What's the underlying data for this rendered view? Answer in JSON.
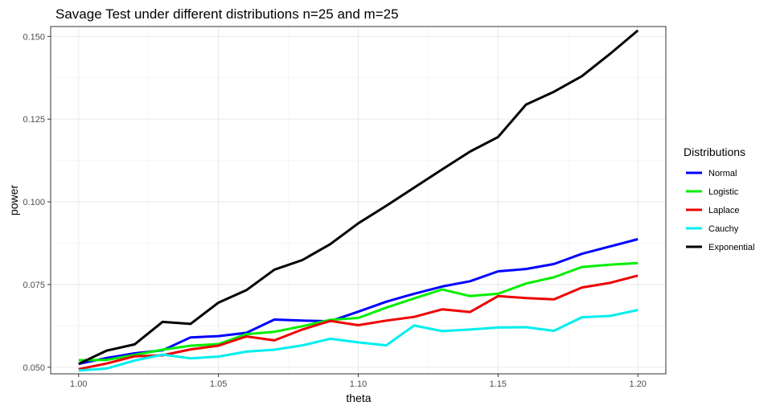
{
  "chart_data": {
    "type": "line",
    "title": "Savage Test under different distributions n=25 and m=25",
    "xlabel": "theta",
    "ylabel": "power",
    "xlim": [
      0.99,
      1.21
    ],
    "ylim": [
      0.048,
      0.153
    ],
    "x_ticks": [
      1.0,
      1.05,
      1.1,
      1.15,
      1.2
    ],
    "x_tick_labels": [
      "1.00",
      "1.05",
      "1.10",
      "1.15",
      "1.20"
    ],
    "y_ticks": [
      0.05,
      0.075,
      0.1,
      0.125,
      0.15
    ],
    "y_tick_labels": [
      "0.050",
      "0.075",
      "0.100",
      "0.125",
      "0.150"
    ],
    "grid": true,
    "legend_title": "Distributions",
    "legend_position": "right",
    "x": [
      1.0,
      1.01,
      1.02,
      1.03,
      1.04,
      1.05,
      1.06,
      1.07,
      1.08,
      1.09,
      1.1,
      1.11,
      1.12,
      1.13,
      1.14,
      1.15,
      1.16,
      1.17,
      1.18,
      1.19,
      1.2
    ],
    "series": [
      {
        "name": "Normal",
        "color": "#0000FF",
        "values": [
          0.051,
          0.0528,
          0.0542,
          0.0551,
          0.059,
          0.0594,
          0.0604,
          0.0644,
          0.0641,
          0.0639,
          0.0668,
          0.0698,
          0.0722,
          0.0744,
          0.076,
          0.079,
          0.0797,
          0.0812,
          0.0843,
          0.0865,
          0.0887
        ]
      },
      {
        "name": "Logistic",
        "color": "#00EE00",
        "values": [
          0.0521,
          0.0522,
          0.0537,
          0.0553,
          0.0565,
          0.057,
          0.06,
          0.0607,
          0.0624,
          0.0643,
          0.0649,
          0.068,
          0.0708,
          0.0735,
          0.0715,
          0.0722,
          0.0753,
          0.0772,
          0.0803,
          0.081,
          0.0815
        ]
      },
      {
        "name": "Laplace",
        "color": "#EE0000",
        "values": [
          0.0494,
          0.0511,
          0.0533,
          0.0536,
          0.0554,
          0.0565,
          0.0593,
          0.0581,
          0.0614,
          0.064,
          0.0627,
          0.0641,
          0.0652,
          0.0675,
          0.0667,
          0.0715,
          0.0709,
          0.0705,
          0.0741,
          0.0755,
          0.0777
        ]
      },
      {
        "name": "Cauchy",
        "color": "#00EEEE",
        "values": [
          0.049,
          0.0496,
          0.052,
          0.0538,
          0.0527,
          0.0532,
          0.0547,
          0.0553,
          0.0566,
          0.0586,
          0.0575,
          0.0566,
          0.0626,
          0.0609,
          0.0614,
          0.062,
          0.0621,
          0.061,
          0.0651,
          0.0655,
          0.0673
        ]
      },
      {
        "name": "Exponential",
        "color": "#000000",
        "values": [
          0.051,
          0.055,
          0.0569,
          0.0637,
          0.0631,
          0.0695,
          0.0733,
          0.0795,
          0.0824,
          0.0872,
          0.0935,
          0.0988,
          0.1043,
          0.1098,
          0.1152,
          0.1196,
          0.1294,
          0.1333,
          0.138,
          0.1447,
          0.1518
        ]
      }
    ]
  }
}
